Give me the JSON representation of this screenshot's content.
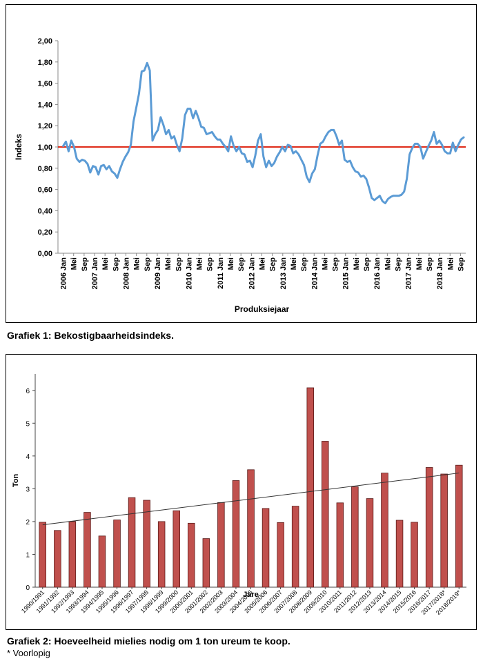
{
  "captions": {
    "chart1": "Grafiek 1: Bekostigbaarheidsindeks.",
    "chart2": "Grafiek 2: Hoeveelheid mielies nodig om 1 ton ureum te koop.",
    "footnote": "* Voorlopig"
  },
  "colors": {
    "line": "#5b9bd5",
    "reference": "#e0301e",
    "bar": "#c0504d",
    "bar_edge": "#5a1a18",
    "trend": "#333333"
  },
  "chart_data": [
    {
      "type": "line",
      "title": "",
      "xlabel": "Produksiejaar",
      "ylabel": "Indeks",
      "ylim": [
        0,
        2
      ],
      "yticks": [
        "0,00",
        "0,20",
        "0,40",
        "0,60",
        "0,80",
        "1,00",
        "1,20",
        "1,40",
        "1,60",
        "1,80",
        "2,00"
      ],
      "xticks": [
        "2006 Jan",
        "Mei",
        "Sep",
        "2007 Jan",
        "Mei",
        "Sep",
        "2008 Jan",
        "Mei",
        "Sep",
        "2009 Jan",
        "Mei",
        "Sep",
        "2010 Jan",
        "Mei",
        "Sep",
        "2011 Jan",
        "Mei",
        "Sep",
        "2012 Jan",
        "Mei",
        "Sep",
        "2013 Jan",
        "Mei",
        "Sep",
        "2014 Jan",
        "Mei",
        "Sep",
        "2015 Jan",
        "Mei",
        "Sep",
        "2016 Jan",
        "Mei",
        "Sep",
        "2017 Jan",
        "Mei",
        "Sep",
        "2018 Jan",
        "Mei",
        "Sep"
      ],
      "reference_line": 1.0,
      "grid": false,
      "legend": "none",
      "series": [
        {
          "values": [
            1.01,
            1.05,
            0.96,
            1.06,
            1.0,
            0.89,
            0.86,
            0.88,
            0.87,
            0.84,
            0.76,
            0.82,
            0.81,
            0.74,
            0.82,
            0.83,
            0.79,
            0.82,
            0.77,
            0.75,
            0.71,
            0.79,
            0.86,
            0.91,
            0.95,
            1.02,
            1.24,
            1.37,
            1.5,
            1.71,
            1.72,
            1.79,
            1.72,
            1.06,
            1.12,
            1.16,
            1.28,
            1.21,
            1.12,
            1.16,
            1.08,
            1.1,
            1.02,
            0.96,
            1.08,
            1.3,
            1.36,
            1.36,
            1.27,
            1.34,
            1.27,
            1.19,
            1.18,
            1.12,
            1.13,
            1.14,
            1.1,
            1.07,
            1.07,
            1.03,
            1.0,
            0.96,
            1.1,
            1.01,
            0.96,
            1.0,
            0.94,
            0.93,
            0.86,
            0.87,
            0.81,
            0.92,
            1.06,
            1.12,
            0.91,
            0.81,
            0.87,
            0.82,
            0.85,
            0.91,
            0.95,
            1.0,
            0.96,
            1.02,
            1.01,
            0.94,
            0.96,
            0.93,
            0.88,
            0.83,
            0.72,
            0.67,
            0.75,
            0.79,
            0.92,
            1.03,
            1.05,
            1.1,
            1.14,
            1.16,
            1.16,
            1.1,
            1.02,
            1.06,
            0.88,
            0.86,
            0.87,
            0.81,
            0.77,
            0.76,
            0.72,
            0.73,
            0.7,
            0.62,
            0.52,
            0.5,
            0.52,
            0.54,
            0.49,
            0.47,
            0.51,
            0.53,
            0.54,
            0.54,
            0.54,
            0.55,
            0.58,
            0.7,
            0.93,
            0.99,
            1.03,
            1.03,
            1.0,
            0.89,
            0.95,
            1.01,
            1.06,
            1.14,
            1.03,
            1.06,
            1.02,
            0.96,
            0.94,
            0.94,
            1.04,
            0.96,
            1.02,
            1.07,
            1.09
          ]
        }
      ]
    },
    {
      "type": "bar",
      "title": "",
      "xlabel": "Jare",
      "ylabel": "Ton",
      "ylim": [
        0,
        6.5
      ],
      "yticks": [
        "0",
        "1",
        "2",
        "3",
        "4",
        "5",
        "6"
      ],
      "grid": false,
      "legend": "none",
      "trendline": {
        "start": 1.9,
        "end": 3.48
      },
      "categories": [
        "1990/1991",
        "1991/1992",
        "1992/1993",
        "1993/1994",
        "1994/1995",
        "1995/1996",
        "1996/1997",
        "1997/1998",
        "1998/1999",
        "1999/2000",
        "2000/2001",
        "2001/2002",
        "2002/2003",
        "2003/2004",
        "2004/2005",
        "2005/2006",
        "2006/2007",
        "2007/2008",
        "2008/2009",
        "2009/2010",
        "2010/2011",
        "2011/2012",
        "2012/2013",
        "2013/2014",
        "2014/2015",
        "2015/2016",
        "2016/2017",
        "2017/2018*",
        "2018/2019*"
      ],
      "values": [
        1.98,
        1.73,
        2.0,
        2.28,
        1.56,
        2.05,
        2.73,
        2.65,
        2.0,
        2.33,
        1.95,
        1.48,
        2.58,
        3.25,
        3.58,
        2.4,
        1.97,
        2.47,
        6.08,
        4.45,
        2.57,
        3.06,
        2.7,
        3.48,
        2.04,
        1.98,
        3.65,
        3.45,
        3.72
      ]
    }
  ]
}
